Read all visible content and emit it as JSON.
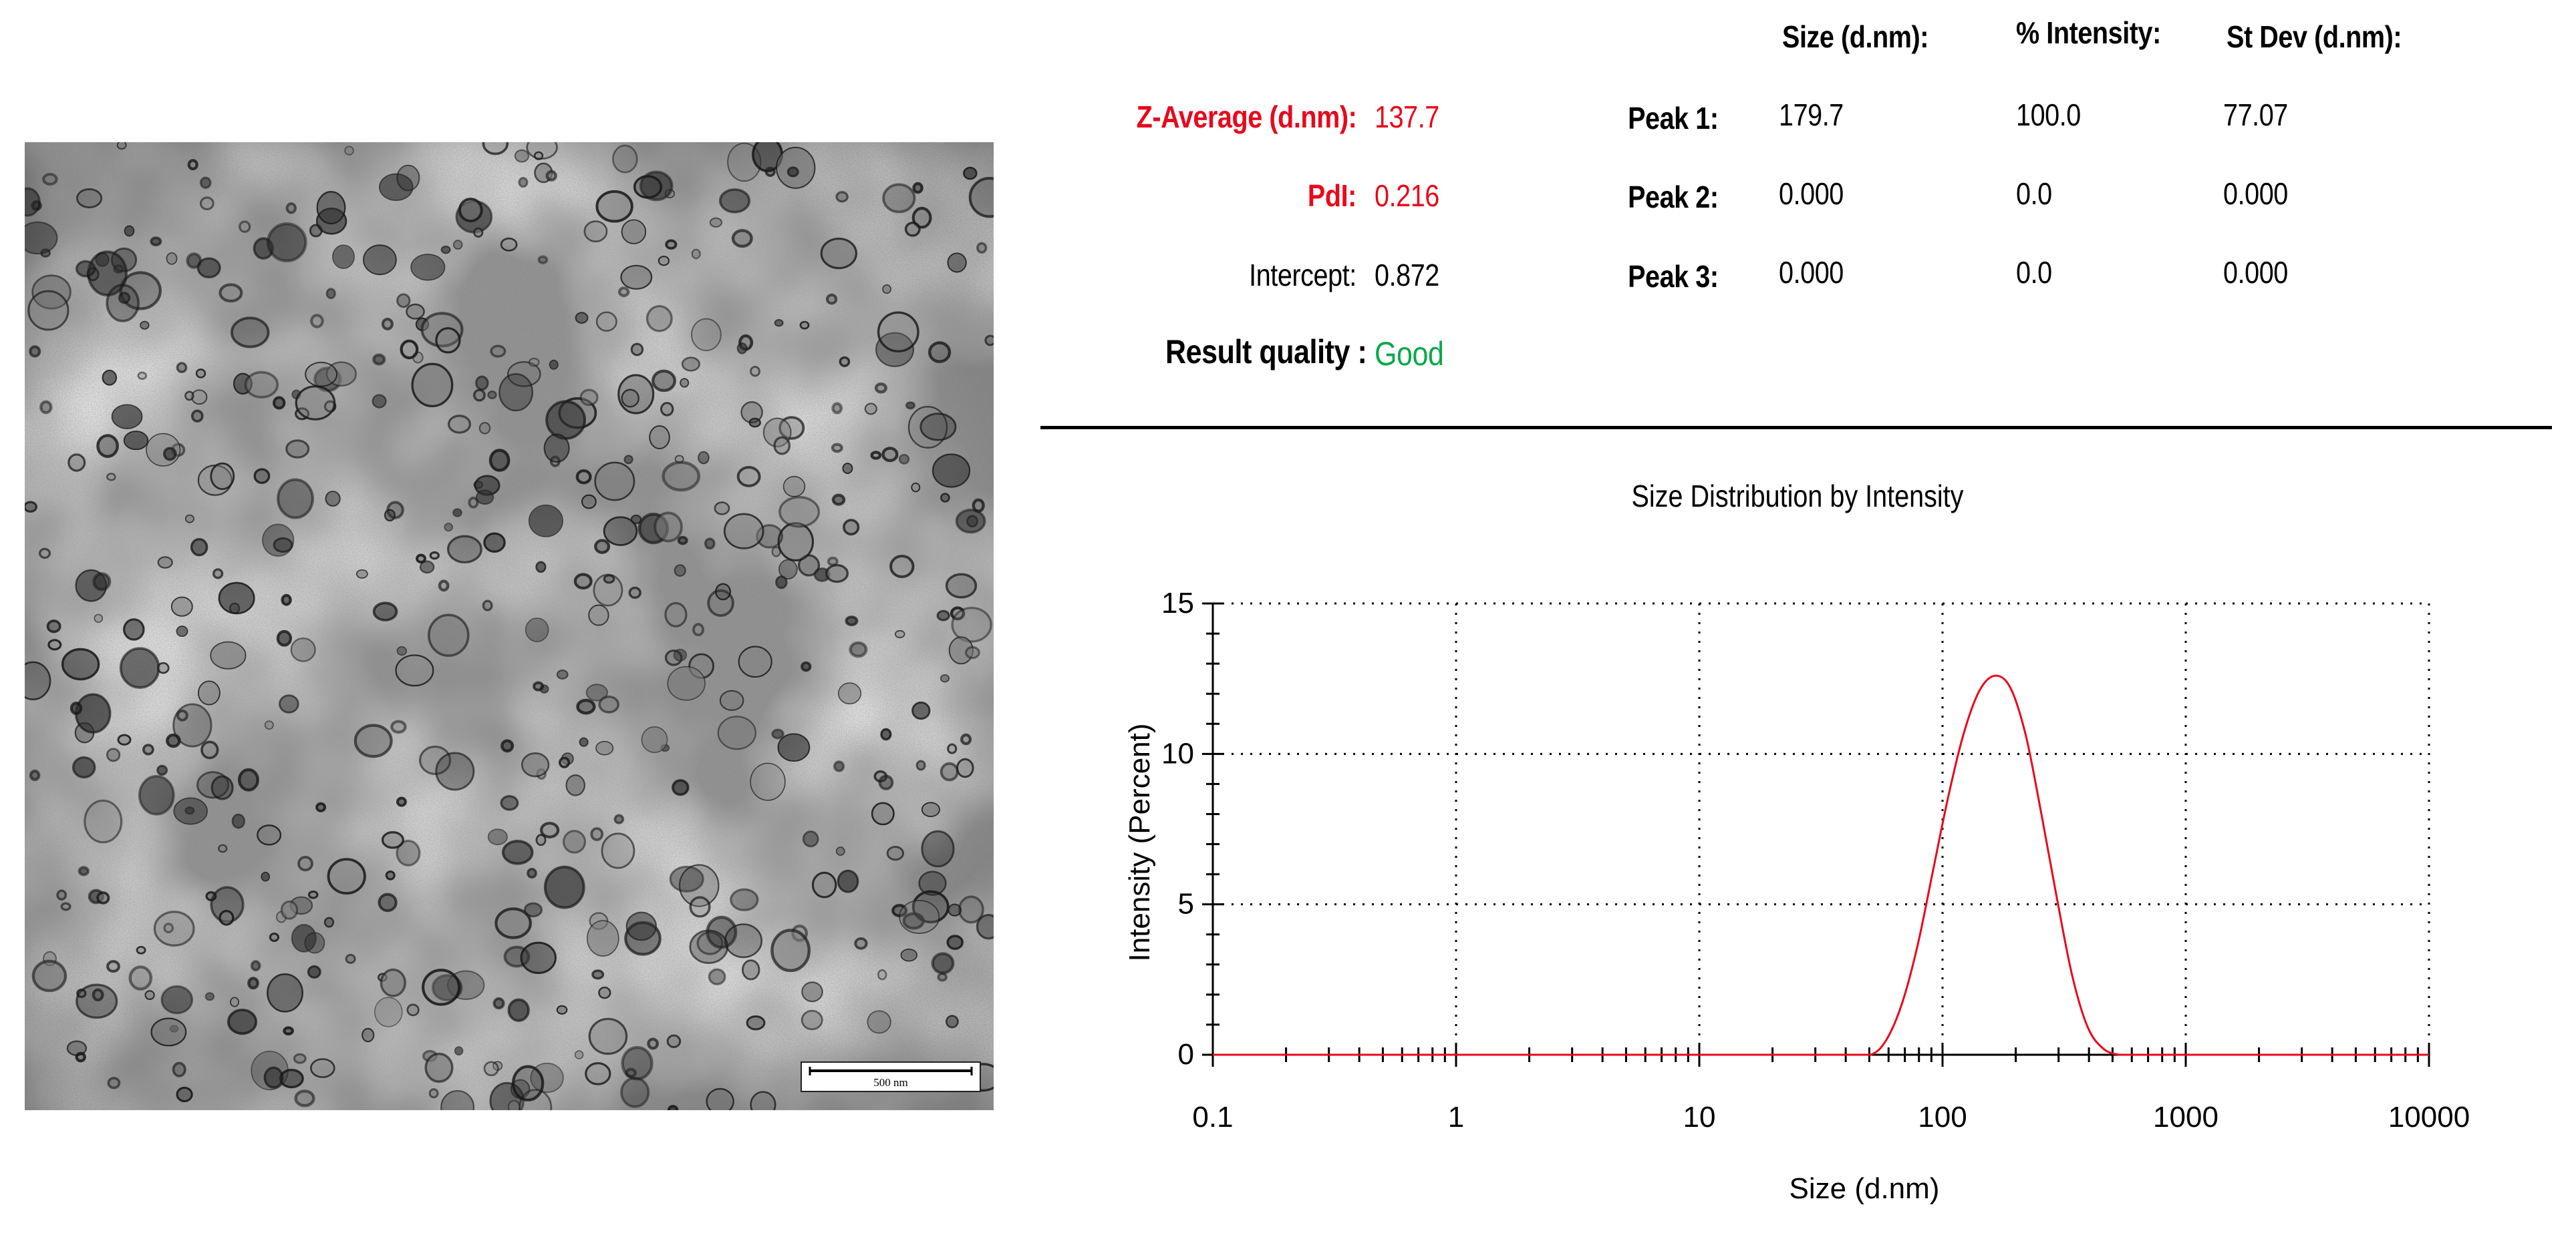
{
  "table": {
    "headers": {
      "size": "Size (d.nm):",
      "intensity": "% Intensity:",
      "stdev": "St Dev (d.nm):"
    },
    "z_average": {
      "label": "Z-Average (d.nm):",
      "value": "137.7"
    },
    "pdi": {
      "label": "PdI:",
      "value": "0.216"
    },
    "intercept": {
      "label": "Intercept:",
      "value": "0.872"
    },
    "quality": {
      "label": "Result quality :",
      "value": "Good"
    },
    "peaks": [
      {
        "label": "Peak 1:",
        "size": "179.7",
        "intensity": "100.0",
        "stdev": "77.07"
      },
      {
        "label": "Peak 2:",
        "size": "0.000",
        "intensity": "0.0",
        "stdev": "0.000"
      },
      {
        "label": "Peak 3:",
        "size": "0.000",
        "intensity": "0.0",
        "stdev": "0.000"
      }
    ]
  },
  "colors": {
    "red": "#e8091c",
    "green": "#0aa84b",
    "curve": "#e8091c",
    "axis": "#000000"
  },
  "tem_image": {
    "scale_bar_label": "500 nm"
  },
  "chart_data": {
    "type": "line",
    "title": "Size Distribution by Intensity",
    "xlabel": "Size (d.nm)",
    "ylabel": "Intensity (Percent)",
    "xscale": "log",
    "xlim": [
      0.1,
      10000
    ],
    "ylim": [
      0,
      15
    ],
    "x_ticks": [
      0.1,
      1,
      10,
      100,
      1000,
      10000
    ],
    "x_tick_labels": [
      "0.1",
      "1",
      "10",
      "100",
      "1000",
      "10000"
    ],
    "y_ticks": [
      0,
      5,
      10,
      15
    ],
    "y_tick_labels": [
      "0",
      "5",
      "10",
      "15"
    ],
    "grid": true,
    "series": [
      {
        "color": "#e8091c",
        "x": [
          0.1,
          10,
          40,
          50.7,
          58.8,
          68.1,
          78.8,
          91.3,
          105.7,
          122.4,
          141.8,
          164.2,
          190.1,
          220.2,
          255.0,
          295.3,
          342.0,
          396.1,
          458.7,
          531.2,
          615.2,
          1000,
          10000
        ],
        "y": [
          0,
          0,
          0,
          0.0,
          0.5,
          1.7,
          3.6,
          6.1,
          8.6,
          10.7,
          12.1,
          12.6,
          12.2,
          10.6,
          8.0,
          5.2,
          2.6,
          0.9,
          0.2,
          0.0,
          0.0,
          0,
          0
        ]
      }
    ]
  }
}
